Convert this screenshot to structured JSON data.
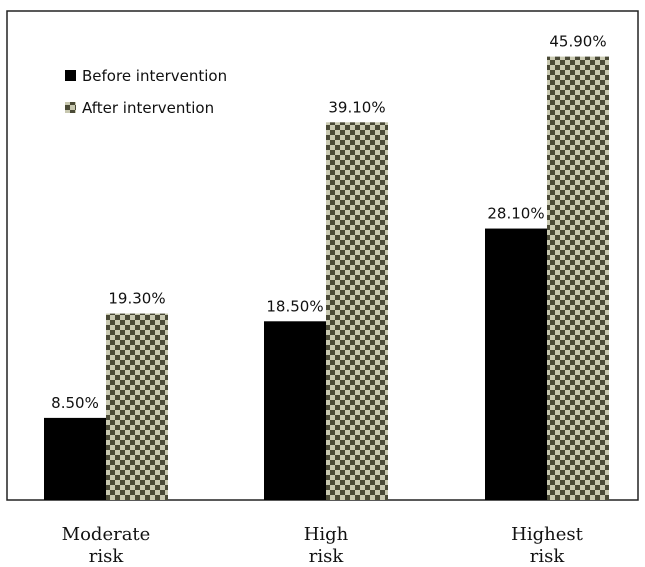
{
  "chart_data": {
    "type": "bar",
    "title": "",
    "xlabel": "",
    "ylabel": "",
    "categories": [
      [
        "Moderate",
        "risk"
      ],
      [
        "High",
        "risk"
      ],
      [
        "Highest",
        "risk"
      ]
    ],
    "series": [
      {
        "name": "Before intervention",
        "values": [
          8.5,
          18.5,
          28.1
        ],
        "labels": [
          "8.50%",
          "18.50%",
          "28.10%"
        ],
        "color": "#000000",
        "pattern": "solid"
      },
      {
        "name": "After intervention",
        "values": [
          19.3,
          39.1,
          45.9
        ],
        "labels": [
          "19.30%",
          "39.10%",
          "45.90%"
        ],
        "color": "#5a5a40",
        "pattern": "checkerboard"
      }
    ],
    "ylim": [
      0,
      50
    ],
    "grid": false,
    "legend_position": "top-left",
    "axes_visible": false,
    "border": true
  }
}
